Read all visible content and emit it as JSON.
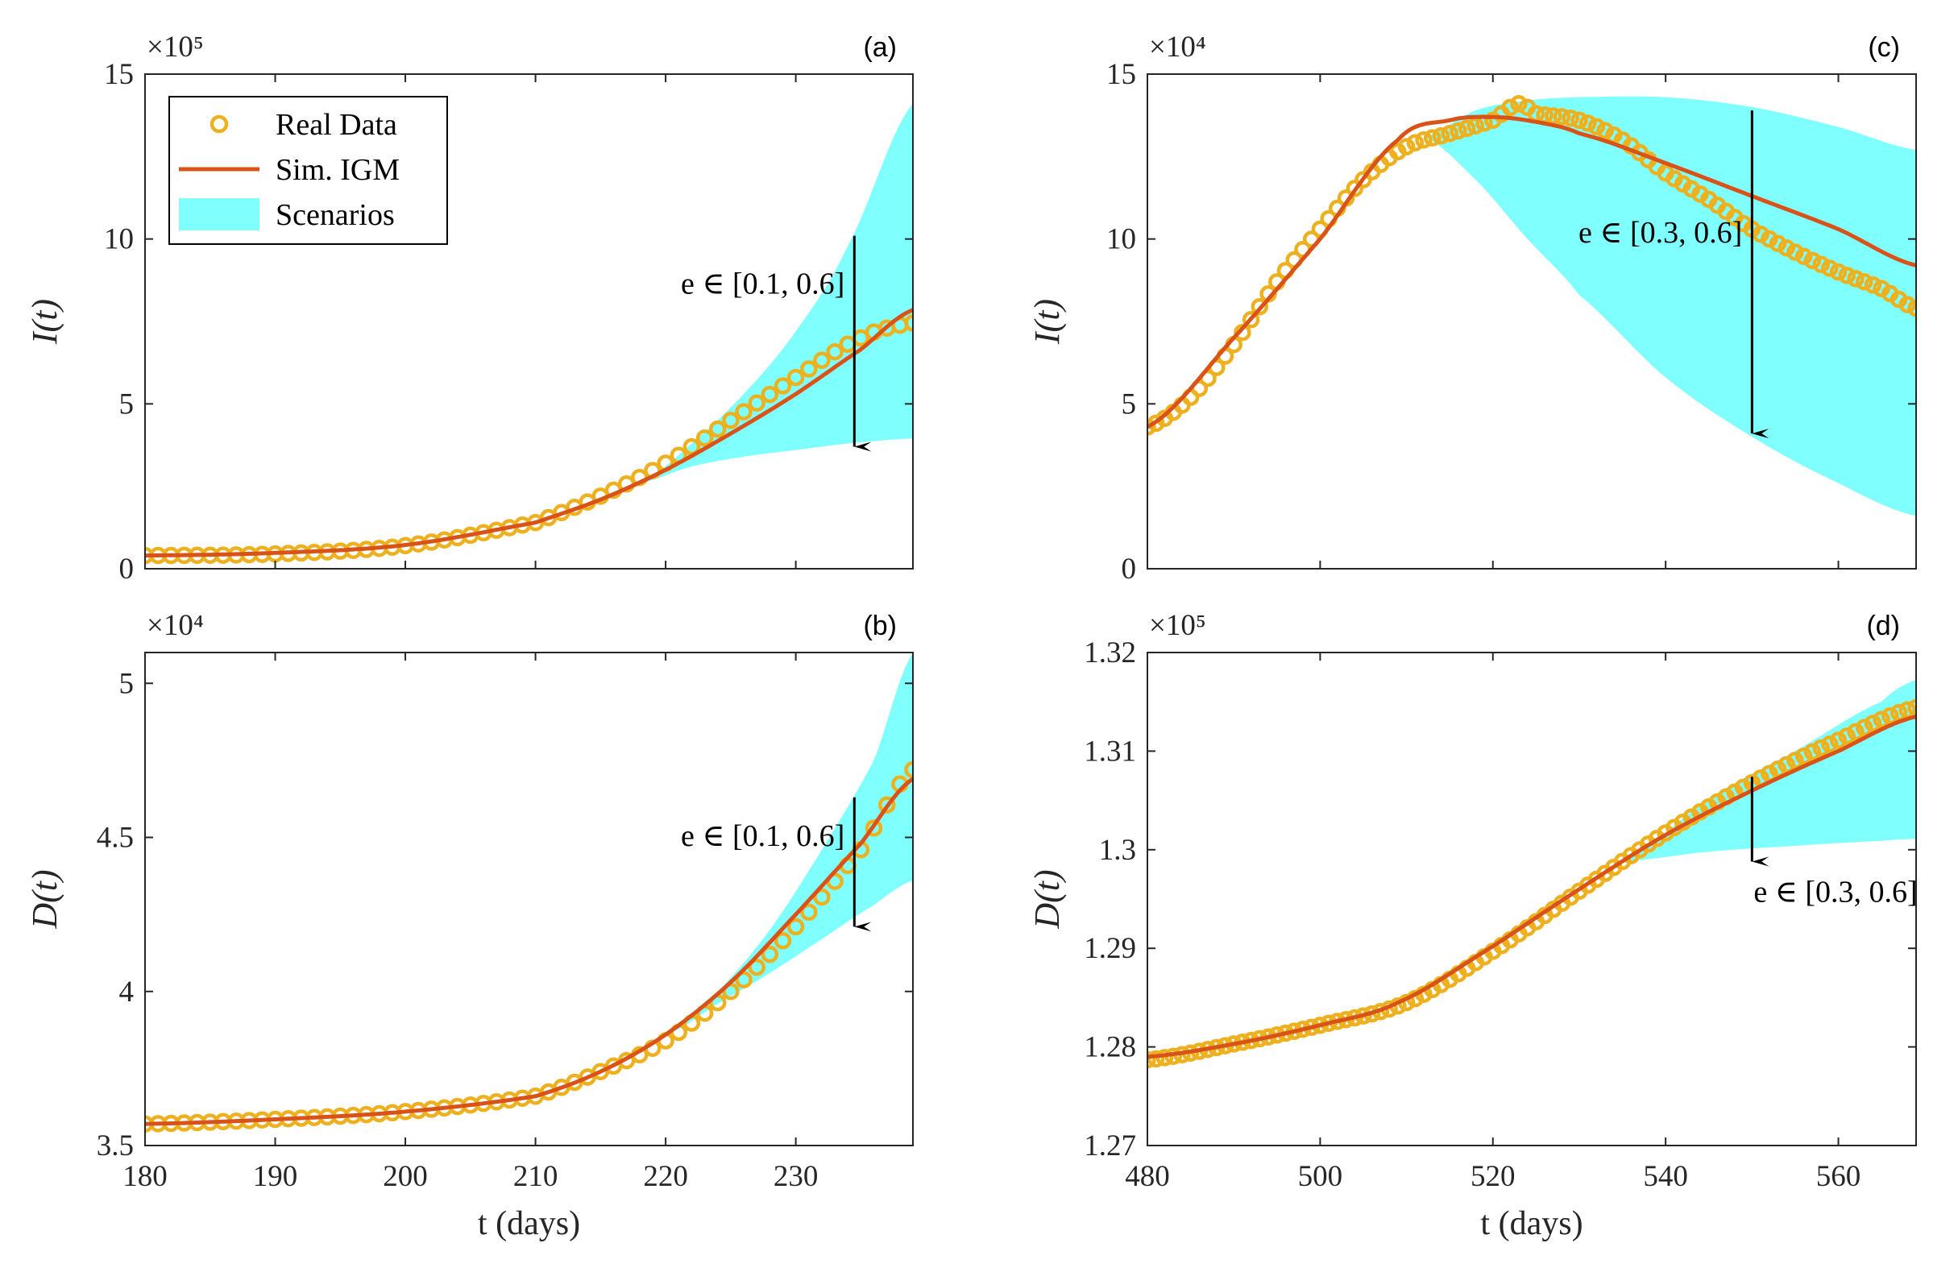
{
  "colors": {
    "real_data": "#EDB120",
    "simulation": "#D95319",
    "scenarios": "#80FFFF",
    "arrow": "#000000",
    "axis": "#262626"
  },
  "legend": {
    "items": [
      {
        "label": "Real Data",
        "kind": "marker"
      },
      {
        "label": "Sim. IGM",
        "kind": "line"
      },
      {
        "label": "Scenarios",
        "kind": "patch"
      }
    ]
  },
  "chart_data": [
    {
      "panel": "(a)",
      "type": "line",
      "ylabel": "I(t)",
      "xlabel": "",
      "y_exponent": "×10⁵",
      "xlim": [
        180,
        239
      ],
      "ylim": [
        0,
        15
      ],
      "xticks": [],
      "yticks": [
        0,
        5,
        10,
        15
      ],
      "ytick_labels": [
        "0",
        "5",
        "10",
        "15"
      ],
      "real_data": {
        "x_start": 180,
        "x_end": 239,
        "step": 1,
        "key_x": [
          180,
          190,
          200,
          210,
          215,
          220,
          225,
          230,
          235,
          239
        ],
        "key_y": [
          0.4,
          0.45,
          0.7,
          1.4,
          2.2,
          3.2,
          4.5,
          5.8,
          7.0,
          7.45
        ]
      },
      "simulation": {
        "x": [
          180,
          190,
          200,
          210,
          215,
          220,
          225,
          230,
          235,
          239
        ],
        "y": [
          0.4,
          0.48,
          0.72,
          1.4,
          2.1,
          3.0,
          4.1,
          5.3,
          6.65,
          7.85
        ]
      },
      "scenario_band": {
        "x": [
          218,
          222,
          226,
          230,
          234,
          239
        ],
        "upper": [
          2.6,
          3.8,
          5.3,
          7.2,
          9.8,
          14.1
        ],
        "lower": [
          2.6,
          3.1,
          3.4,
          3.6,
          3.8,
          3.95
        ]
      },
      "annotation": {
        "text": "e ∈ [0.1, 0.6]",
        "arrow_x": 234.5,
        "arrow_y_from": 10.1,
        "arrow_y_to": 3.7
      }
    },
    {
      "panel": "(b)",
      "type": "line",
      "ylabel": "D(t)",
      "xlabel": "t (days)",
      "y_exponent": "×10⁴",
      "xlim": [
        180,
        239
      ],
      "ylim": [
        3.5,
        5.1
      ],
      "xticks": [
        180,
        190,
        200,
        210,
        220,
        230
      ],
      "yticks": [
        3.5,
        4,
        4.5,
        5
      ],
      "ytick_labels": [
        "3.5",
        "4",
        "4.5",
        "5"
      ],
      "real_data": {
        "x_start": 180,
        "x_end": 239,
        "step": 1,
        "key_x": [
          180,
          190,
          200,
          210,
          215,
          220,
          225,
          230,
          235,
          239
        ],
        "key_y": [
          3.57,
          3.585,
          3.61,
          3.66,
          3.74,
          3.84,
          4.0,
          4.21,
          4.46,
          4.72
        ]
      },
      "simulation": {
        "x": [
          180,
          190,
          200,
          210,
          215,
          220,
          225,
          230,
          235,
          239
        ],
        "y": [
          3.57,
          3.585,
          3.61,
          3.66,
          3.74,
          3.86,
          4.03,
          4.25,
          4.48,
          4.69
        ]
      },
      "scenario_band": {
        "x": [
          220,
          224,
          228,
          232,
          236,
          239
        ],
        "upper": [
          3.86,
          4.0,
          4.2,
          4.46,
          4.75,
          5.1
        ],
        "lower": [
          3.86,
          3.96,
          4.06,
          4.17,
          4.28,
          4.36
        ]
      },
      "annotation": {
        "text": "e ∈ [0.1, 0.6]",
        "arrow_x": 234.5,
        "arrow_y_from": 4.63,
        "arrow_y_to": 4.21
      }
    },
    {
      "panel": "(c)",
      "type": "line",
      "ylabel": "I(t)",
      "xlabel": "",
      "y_exponent": "×10⁴",
      "xlim": [
        480,
        569
      ],
      "ylim": [
        0,
        15
      ],
      "xticks": [],
      "yticks": [
        0,
        5,
        10,
        15
      ],
      "ytick_labels": [
        "0",
        "5",
        "10",
        "15"
      ],
      "real_data": {
        "x_start": 480,
        "x_end": 569,
        "step": 1,
        "key_x": [
          480,
          485,
          490,
          495,
          500,
          505,
          510,
          515,
          520,
          523,
          525,
          530,
          535,
          540,
          545,
          550,
          555,
          560,
          565,
          569
        ],
        "key_y": [
          4.3,
          5.2,
          6.8,
          8.7,
          10.3,
          11.8,
          12.8,
          13.2,
          13.6,
          14.1,
          13.8,
          13.6,
          13.0,
          12.0,
          11.2,
          10.3,
          9.6,
          9.0,
          8.5,
          7.9
        ]
      },
      "simulation": {
        "x": [
          480,
          490,
          500,
          509,
          515,
          520,
          525,
          530,
          540,
          550,
          560,
          569
        ],
        "y": [
          4.3,
          7.0,
          10.0,
          13.0,
          13.6,
          13.7,
          13.55,
          13.2,
          12.3,
          11.3,
          10.3,
          9.2
        ]
      },
      "scenario_band": {
        "x": [
          512,
          518,
          524,
          530,
          540,
          550,
          560,
          569
        ],
        "upper": [
          13.1,
          13.9,
          14.2,
          14.3,
          14.3,
          14.0,
          13.4,
          12.7
        ],
        "lower": [
          13.1,
          11.8,
          10.0,
          8.3,
          5.8,
          4.0,
          2.6,
          1.6
        ]
      },
      "annotation": {
        "text": "e ∈ [0.3, 0.6]",
        "arrow_x": 550,
        "arrow_y_from": 13.9,
        "arrow_y_to": 4.1
      }
    },
    {
      "panel": "(d)",
      "type": "line",
      "ylabel": "D(t)",
      "xlabel": "t (days)",
      "y_exponent": "×10⁵",
      "xlim": [
        480,
        569
      ],
      "ylim": [
        1.27,
        1.32
      ],
      "xticks": [
        480,
        500,
        520,
        540,
        560
      ],
      "yticks": [
        1.27,
        1.28,
        1.29,
        1.3,
        1.31,
        1.32
      ],
      "ytick_labels": [
        "1.27",
        "1.28",
        "1.29",
        "1.3",
        "1.31",
        "1.32"
      ],
      "real_data": {
        "x_start": 480,
        "x_end": 569,
        "step": 1,
        "key_x": [
          480,
          490,
          500,
          510,
          520,
          530,
          540,
          550,
          560,
          569
        ],
        "key_y": [
          1.2787,
          1.2803,
          1.2822,
          1.2845,
          1.2897,
          1.2958,
          1.3017,
          1.3068,
          1.3111,
          1.3144
        ]
      },
      "simulation": {
        "x": [
          480,
          490,
          500,
          509,
          520,
          530,
          540,
          550,
          560,
          569
        ],
        "y": [
          1.279,
          1.2803,
          1.2822,
          1.2845,
          1.2902,
          1.296,
          1.3015,
          1.306,
          1.31,
          1.3135
        ]
      },
      "scenario_band": {
        "x": [
          535,
          545,
          555,
          565,
          569
        ],
        "upper": [
          1.2988,
          1.3052,
          1.31,
          1.315,
          1.3172
        ],
        "lower": [
          1.2988,
          1.2998,
          1.3004,
          1.3009,
          1.3011
        ]
      },
      "annotation": {
        "text": "e ∈ [0.3, 0.6]",
        "arrow_x": 550,
        "arrow_y_from": 1.3074,
        "arrow_y_to": 1.2988
      }
    }
  ]
}
